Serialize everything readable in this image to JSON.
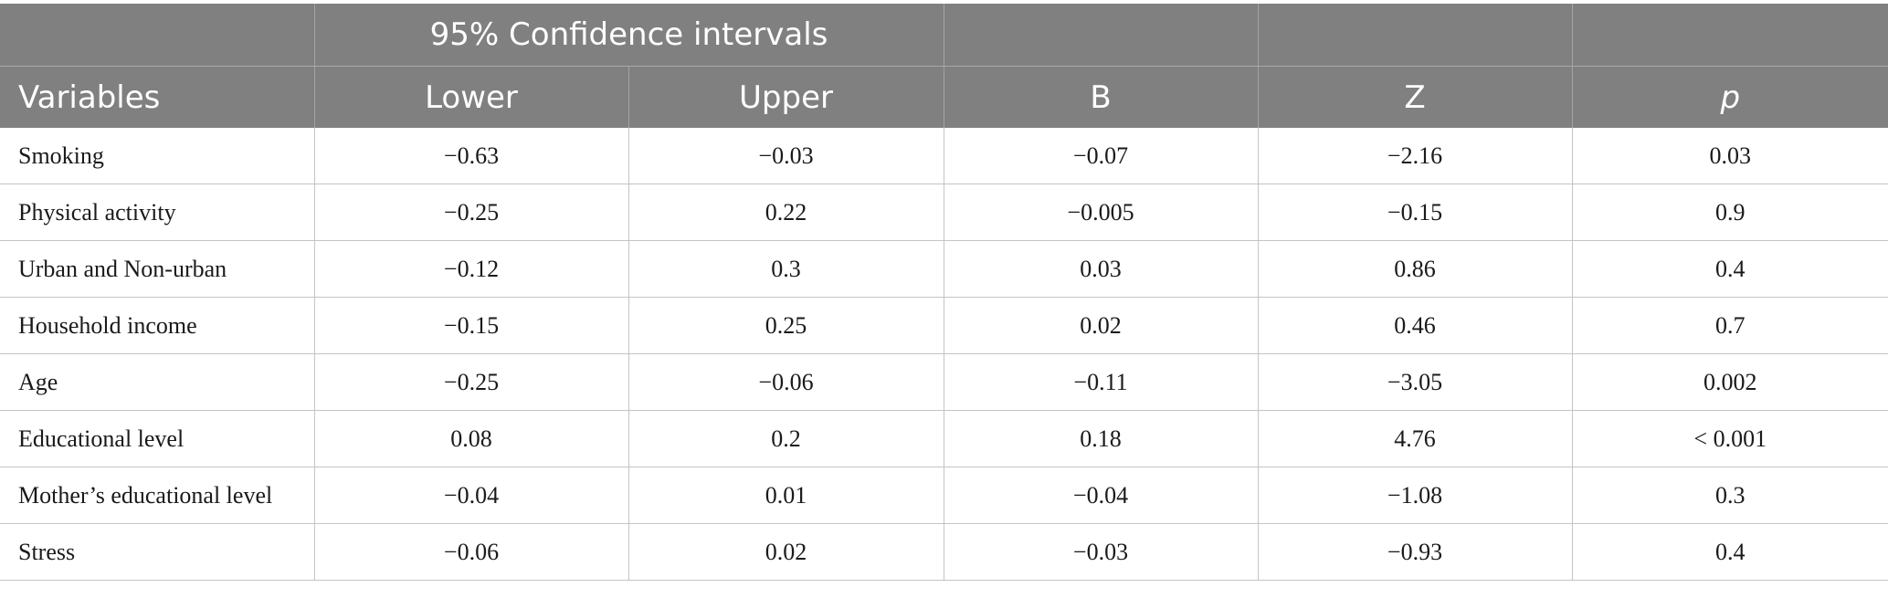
{
  "header": {
    "group_label": "95% Confidence intervals",
    "columns": [
      "Variables",
      "Lower",
      "Upper",
      "B",
      "Z",
      "p"
    ]
  },
  "rows": [
    [
      "Smoking",
      "−0.63",
      "−0.03",
      "−0.07",
      "−2.16",
      "0.03"
    ],
    [
      "Physical activity",
      "−0.25",
      "0.22",
      "−0.005",
      "−0.15",
      "0.9"
    ],
    [
      "Urban and Non-urban",
      "−0.12",
      "0.3",
      "0.03",
      "0.86",
      "0.4"
    ],
    [
      "Household income",
      "−0.15",
      "0.25",
      "0.02",
      "0.46",
      "0.7"
    ],
    [
      "Age",
      "−0.25",
      "−0.06",
      "−0.11",
      "−3.05",
      "0.002"
    ],
    [
      "Educational level",
      "0.08",
      "0.2",
      "0.18",
      "4.76",
      "< 0.001"
    ],
    [
      "Mother’s educational level",
      "−0.04",
      "0.01",
      "−0.04",
      "−1.08",
      "0.3"
    ],
    [
      "Stress",
      "−0.06",
      "0.02",
      "−0.03",
      "−0.93",
      "0.4"
    ]
  ]
}
